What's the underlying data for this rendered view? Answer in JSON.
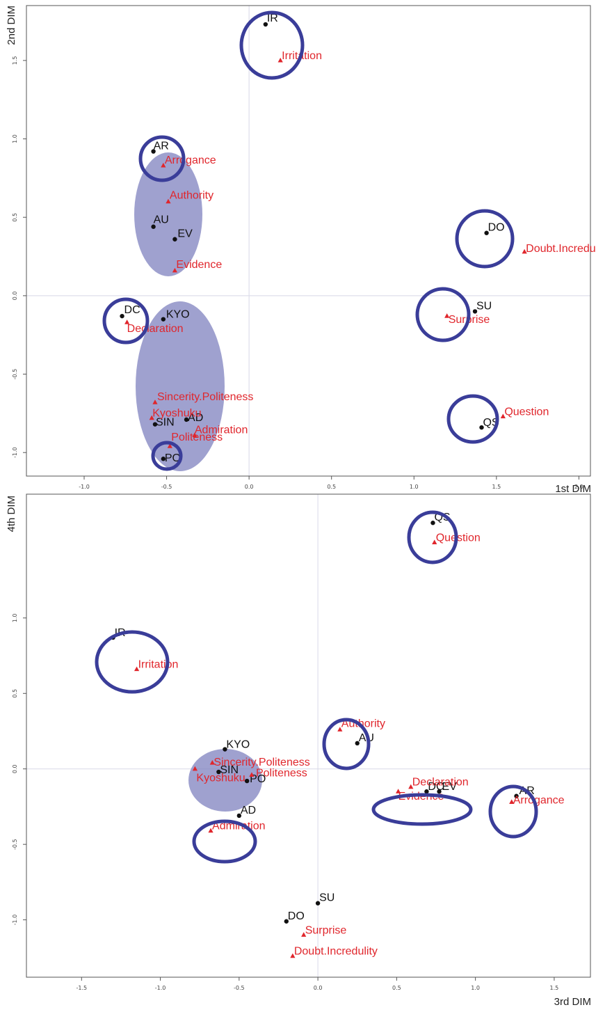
{
  "colors": {
    "speaker_point": "#111111",
    "attitude_point": "#e0262c",
    "circle": "#3a3d99",
    "cluster_fill": "#7f82bf"
  },
  "chart_data": [
    {
      "type": "scatter",
      "xlabel": "1st DIM",
      "ylabel": "2nd DIM",
      "xlim": [
        -1.35,
        2.07
      ],
      "ylim": [
        -1.15,
        1.85
      ],
      "xticks": [
        -1.0,
        -0.5,
        0.0,
        0.5,
        1.0,
        1.5,
        2.0
      ],
      "xtick_labels": [
        "-1.0",
        "-0.5",
        "0.0",
        "0.5",
        "1.0",
        "1.5",
        "2.0"
      ],
      "yticks": [
        -1.0,
        -0.5,
        0.0,
        0.5,
        1.0,
        1.5
      ],
      "ytick_labels": [
        "-1.0",
        "-0.5",
        "0.0",
        "0.5",
        "1.0",
        "1.5"
      ],
      "series": [
        {
          "marker": "dot",
          "points": [
            {
              "label": "IR",
              "x": 0.1,
              "y": 1.73
            },
            {
              "label": "AR",
              "x": -0.58,
              "y": 0.92
            },
            {
              "label": "AU",
              "x": -0.58,
              "y": 0.44
            },
            {
              "label": "EV",
              "x": -0.45,
              "y": 0.36
            },
            {
              "label": "DC",
              "x": -0.77,
              "y": -0.13
            },
            {
              "label": "KYO",
              "x": -0.52,
              "y": -0.15
            },
            {
              "label": "SIN",
              "x": -0.57,
              "y": -0.82
            },
            {
              "label": "AD",
              "x": -0.38,
              "y": -0.79
            },
            {
              "label": "PO",
              "x": -0.52,
              "y": -1.04
            },
            {
              "label": "DO",
              "x": 1.44,
              "y": 0.4
            },
            {
              "label": "SU",
              "x": 1.37,
              "y": -0.1
            },
            {
              "label": "QS",
              "x": 1.41,
              "y": -0.84
            }
          ]
        },
        {
          "marker": "triangle",
          "points": [
            {
              "label": "Irritation",
              "x": 0.19,
              "y": 1.5
            },
            {
              "label": "Arrogance",
              "x": -0.52,
              "y": 0.83
            },
            {
              "label": "Authority",
              "x": -0.49,
              "y": 0.6
            },
            {
              "label": "Evidence",
              "x": -0.45,
              "y": 0.16
            },
            {
              "label": "Declaration",
              "x": -0.74,
              "y": -0.17
            },
            {
              "label": "Sincerity.Politeness",
              "x": -0.57,
              "y": -0.68
            },
            {
              "label": "Kyoshuku",
              "x": -0.59,
              "y": -0.78
            },
            {
              "label": "Admiration",
              "x": -0.33,
              "y": -0.89
            },
            {
              "label": "Politeness",
              "x": -0.48,
              "y": -0.96
            },
            {
              "label": "Doubt.Incredulity",
              "x": 1.67,
              "y": 0.28
            },
            {
              "label": "Surprise",
              "x": 1.2,
              "y": -0.13
            },
            {
              "label": "Question",
              "x": 1.54,
              "y": -0.77
            }
          ]
        }
      ]
    },
    {
      "type": "scatter",
      "xlabel": "3rd DIM",
      "ylabel": "4th DIM",
      "xlim": [
        -1.85,
        1.73
      ],
      "ylim": [
        -1.38,
        1.82
      ],
      "xticks": [
        -1.5,
        -1.0,
        -0.5,
        0.0,
        0.5,
        1.0,
        1.5
      ],
      "xtick_labels": [
        "-1.5",
        "-1.0",
        "-0.5",
        "0.0",
        "0.5",
        "1.0",
        "1.5"
      ],
      "yticks": [
        -1.0,
        -0.5,
        0.0,
        0.5,
        1.0
      ],
      "ytick_labels": [
        "-1.0",
        "-0.5",
        "0.0",
        "0.5",
        "1.0"
      ],
      "series": [
        {
          "marker": "dot",
          "points": [
            {
              "label": "QS",
              "x": 0.73,
              "y": 1.63
            },
            {
              "label": "IR",
              "x": -1.3,
              "y": 0.87
            },
            {
              "label": "AU",
              "x": 0.25,
              "y": 0.17
            },
            {
              "label": "KYO",
              "x": -0.59,
              "y": 0.13
            },
            {
              "label": "SIN",
              "x": -0.63,
              "y": -0.02
            },
            {
              "label": "PO",
              "x": -0.45,
              "y": -0.08
            },
            {
              "label": "DC",
              "x": 0.69,
              "y": -0.15
            },
            {
              "label": "EV",
              "x": 0.77,
              "y": -0.15
            },
            {
              "label": "AR",
              "x": 1.26,
              "y": -0.18
            },
            {
              "label": "AD",
              "x": -0.5,
              "y": -0.31
            },
            {
              "label": "SU",
              "x": 0.0,
              "y": -0.89
            },
            {
              "label": "DO",
              "x": -0.2,
              "y": -1.01
            }
          ]
        },
        {
          "marker": "triangle",
          "points": [
            {
              "label": "Question",
              "x": 0.74,
              "y": 1.5
            },
            {
              "label": "Irritation",
              "x": -1.15,
              "y": 0.66
            },
            {
              "label": "Authority",
              "x": 0.14,
              "y": 0.26
            },
            {
              "label": "Sincerity.Politeness",
              "x": -0.67,
              "y": 0.04
            },
            {
              "label": "Politeness",
              "x": -0.42,
              "y": -0.04
            },
            {
              "label": "Kyoshuku",
              "x": -0.78,
              "y": 0.0
            },
            {
              "label": "Declaration",
              "x": 0.59,
              "y": -0.12
            },
            {
              "label": "Evidence",
              "x": 0.51,
              "y": -0.15
            },
            {
              "label": "Arrogance",
              "x": 1.23,
              "y": -0.22
            },
            {
              "label": "Admiration",
              "x": -0.68,
              "y": -0.41
            },
            {
              "label": "Surprise",
              "x": -0.09,
              "y": -1.1
            },
            {
              "label": "Doubt.Incredulity",
              "x": -0.16,
              "y": -1.24
            }
          ]
        }
      ]
    }
  ]
}
